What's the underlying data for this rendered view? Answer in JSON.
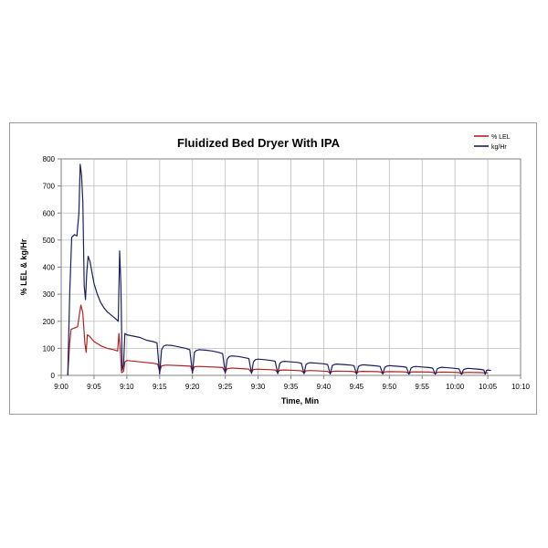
{
  "chart_data": {
    "type": "line",
    "title": "Fluidized Bed Dryer With IPA",
    "xlabel": "Time, Min",
    "ylabel": "% LEL & kg/Hr",
    "x_ticks": [
      "9:00",
      "9:05",
      "9:10",
      "9:15",
      "9:20",
      "9:25",
      "9:30",
      "9:35",
      "9:40",
      "9:45",
      "9:50",
      "9:55",
      "10:00",
      "10:05",
      "10:10"
    ],
    "y_ticks": [
      0,
      100,
      200,
      300,
      400,
      500,
      600,
      700,
      800
    ],
    "xlim": [
      "9:00",
      "10:10"
    ],
    "ylim": [
      0,
      800
    ],
    "grid": true,
    "legend_position": "top-right",
    "series": [
      {
        "name": "% LEL",
        "color": "#b22222",
        "points": [
          [
            "9:01",
            0
          ],
          [
            "9:01.3",
            120
          ],
          [
            "9:01.5",
            170
          ],
          [
            "9:02",
            175
          ],
          [
            "9:02.5",
            180
          ],
          [
            "9:02.8",
            230
          ],
          [
            "9:03",
            260
          ],
          [
            "9:03.3",
            230
          ],
          [
            "9:03.6",
            120
          ],
          [
            "9:03.8",
            85
          ],
          [
            "9:04",
            150
          ],
          [
            "9:04.3",
            145
          ],
          [
            "9:05",
            125
          ],
          [
            "9:06",
            110
          ],
          [
            "9:07",
            100
          ],
          [
            "9:08",
            95
          ],
          [
            "9:08.6",
            90
          ],
          [
            "9:08.8",
            155
          ],
          [
            "9:09",
            95
          ],
          [
            "9:09.2",
            10
          ],
          [
            "9:09.5",
            15
          ],
          [
            "9:09.7",
            50
          ],
          [
            "9:10",
            55
          ],
          [
            "9:12",
            50
          ],
          [
            "9:14",
            45
          ],
          [
            "9:14.7",
            42
          ],
          [
            "9:15",
            15
          ],
          [
            "9:15.3",
            35
          ],
          [
            "9:16",
            38
          ],
          [
            "9:19",
            35
          ],
          [
            "9:19.7",
            34
          ],
          [
            "9:20",
            15
          ],
          [
            "9:20.3",
            32
          ],
          [
            "9:21",
            33
          ],
          [
            "9:24",
            30
          ],
          [
            "9:24.6",
            29
          ],
          [
            "9:25",
            12
          ],
          [
            "9:25.3",
            25
          ],
          [
            "9:26",
            27
          ],
          [
            "9:28",
            24
          ],
          [
            "9:28.6",
            23
          ],
          [
            "9:29",
            10
          ],
          [
            "9:29.3",
            22
          ],
          [
            "9:30",
            23
          ],
          [
            "9:32",
            21
          ],
          [
            "9:32.6",
            20
          ],
          [
            "9:33",
            10
          ],
          [
            "9:33.3",
            19
          ],
          [
            "9:34",
            20
          ],
          [
            "9:36",
            18
          ],
          [
            "9:36.6",
            17
          ],
          [
            "9:37",
            8
          ],
          [
            "9:37.3",
            17
          ],
          [
            "9:38",
            18
          ],
          [
            "9:40",
            16
          ],
          [
            "9:40.6",
            15
          ],
          [
            "9:41",
            8
          ],
          [
            "9:41.3",
            15
          ],
          [
            "9:42",
            16
          ],
          [
            "9:44",
            15
          ],
          [
            "9:44.6",
            14
          ],
          [
            "9:45",
            7
          ],
          [
            "9:45.3",
            14
          ],
          [
            "9:46",
            15
          ],
          [
            "9:48",
            14
          ],
          [
            "9:48.6",
            13
          ],
          [
            "9:49",
            7
          ],
          [
            "9:49.3",
            13
          ],
          [
            "9:50",
            14
          ],
          [
            "9:52",
            13
          ],
          [
            "9:52.6",
            12
          ],
          [
            "9:53",
            6
          ],
          [
            "9:53.3",
            12
          ],
          [
            "9:54",
            13
          ],
          [
            "9:56",
            12
          ],
          [
            "9:56.6",
            11
          ],
          [
            "9:57",
            6
          ],
          [
            "9:57.3",
            11
          ],
          [
            "9:58",
            12
          ],
          [
            "10:00",
            11
          ],
          [
            "10:00.6",
            10
          ],
          [
            "10:01",
            5
          ],
          [
            "10:01.3",
            10
          ],
          [
            "10:02",
            11
          ],
          [
            "10:04",
            10
          ],
          [
            "10:04.5",
            9
          ],
          [
            "10:05",
            9
          ]
        ]
      },
      {
        "name": "kg/Hr",
        "color": "#1a1f5e",
        "points": [
          [
            "9:01",
            0
          ],
          [
            "9:01.3",
            300
          ],
          [
            "9:01.6",
            510
          ],
          [
            "9:02",
            520
          ],
          [
            "9:02.4",
            515
          ],
          [
            "9:02.7",
            600
          ],
          [
            "9:02.9",
            780
          ],
          [
            "9:03.1",
            740
          ],
          [
            "9:03.3",
            640
          ],
          [
            "9:03.5",
            330
          ],
          [
            "9:03.7",
            280
          ],
          [
            "9:03.9",
            380
          ],
          [
            "9:04.1",
            440
          ],
          [
            "9:04.4",
            420
          ],
          [
            "9:05",
            340
          ],
          [
            "9:05.5",
            300
          ],
          [
            "9:06",
            270
          ],
          [
            "9:06.5",
            250
          ],
          [
            "9:07",
            235
          ],
          [
            "9:07.5",
            225
          ],
          [
            "9:08",
            215
          ],
          [
            "9:08.5",
            205
          ],
          [
            "9:08.7",
            200
          ],
          [
            "9:08.9",
            460
          ],
          [
            "9:09.1",
            330
          ],
          [
            "9:09.3",
            20
          ],
          [
            "9:09.5",
            40
          ],
          [
            "9:09.7",
            155
          ],
          [
            "9:10",
            150
          ],
          [
            "9:11",
            145
          ],
          [
            "9:12",
            140
          ],
          [
            "9:13",
            130
          ],
          [
            "9:14",
            125
          ],
          [
            "9:14.6",
            120
          ],
          [
            "9:15",
            5
          ],
          [
            "9:15.3",
            95
          ],
          [
            "9:15.6",
            108
          ],
          [
            "9:16",
            112
          ],
          [
            "9:17",
            110
          ],
          [
            "9:18",
            105
          ],
          [
            "9:19",
            100
          ],
          [
            "9:19.6",
            95
          ],
          [
            "9:20",
            8
          ],
          [
            "9:20.3",
            85
          ],
          [
            "9:20.6",
            92
          ],
          [
            "9:21",
            95
          ],
          [
            "9:22",
            93
          ],
          [
            "9:23",
            90
          ],
          [
            "9:24",
            85
          ],
          [
            "9:24.6",
            80
          ],
          [
            "9:25",
            8
          ],
          [
            "9:25.3",
            60
          ],
          [
            "9:25.6",
            70
          ],
          [
            "9:26",
            72
          ],
          [
            "9:27",
            70
          ],
          [
            "9:28",
            65
          ],
          [
            "9:28.6",
            62
          ],
          [
            "9:29",
            7
          ],
          [
            "9:29.3",
            50
          ],
          [
            "9:29.6",
            58
          ],
          [
            "9:30",
            60
          ],
          [
            "9:31",
            58
          ],
          [
            "9:32",
            55
          ],
          [
            "9:32.6",
            52
          ],
          [
            "9:33",
            6
          ],
          [
            "9:33.3",
            45
          ],
          [
            "9:33.6",
            50
          ],
          [
            "9:34",
            52
          ],
          [
            "9:35",
            50
          ],
          [
            "9:36",
            48
          ],
          [
            "9:36.6",
            45
          ],
          [
            "9:37",
            6
          ],
          [
            "9:37.3",
            40
          ],
          [
            "9:37.6",
            45
          ],
          [
            "9:38",
            47
          ],
          [
            "9:39",
            45
          ],
          [
            "9:40",
            43
          ],
          [
            "9:40.6",
            40
          ],
          [
            "9:41",
            5
          ],
          [
            "9:41.3",
            36
          ],
          [
            "9:41.6",
            40
          ],
          [
            "9:42",
            42
          ],
          [
            "9:43",
            40
          ],
          [
            "9:44",
            38
          ],
          [
            "9:44.6",
            36
          ],
          [
            "9:45",
            5
          ],
          [
            "9:45.3",
            33
          ],
          [
            "9:45.6",
            37
          ],
          [
            "9:46",
            39
          ],
          [
            "9:47",
            37
          ],
          [
            "9:48",
            35
          ],
          [
            "9:48.6",
            33
          ],
          [
            "9:49",
            5
          ],
          [
            "9:49.3",
            30
          ],
          [
            "9:49.6",
            34
          ],
          [
            "9:50",
            36
          ],
          [
            "9:51",
            34
          ],
          [
            "9:52",
            32
          ],
          [
            "9:52.6",
            30
          ],
          [
            "9:53",
            4
          ],
          [
            "9:53.3",
            27
          ],
          [
            "9:53.6",
            31
          ],
          [
            "9:54",
            33
          ],
          [
            "9:55",
            31
          ],
          [
            "9:56",
            29
          ],
          [
            "9:56.6",
            27
          ],
          [
            "9:57",
            4
          ],
          [
            "9:57.3",
            24
          ],
          [
            "9:57.6",
            28
          ],
          [
            "9:58",
            30
          ],
          [
            "9:59",
            28
          ],
          [
            "10:00",
            26
          ],
          [
            "10:00.6",
            24
          ],
          [
            "10:01",
            4
          ],
          [
            "10:01.3",
            21
          ],
          [
            "10:01.6",
            24
          ],
          [
            "10:02",
            26
          ],
          [
            "10:03",
            24
          ],
          [
            "10:04",
            22
          ],
          [
            "10:04.4",
            20
          ],
          [
            "10:04.6",
            4
          ],
          [
            "10:04.8",
            18
          ],
          [
            "10:05",
            20
          ],
          [
            "10:05.5",
            18
          ]
        ]
      }
    ]
  }
}
